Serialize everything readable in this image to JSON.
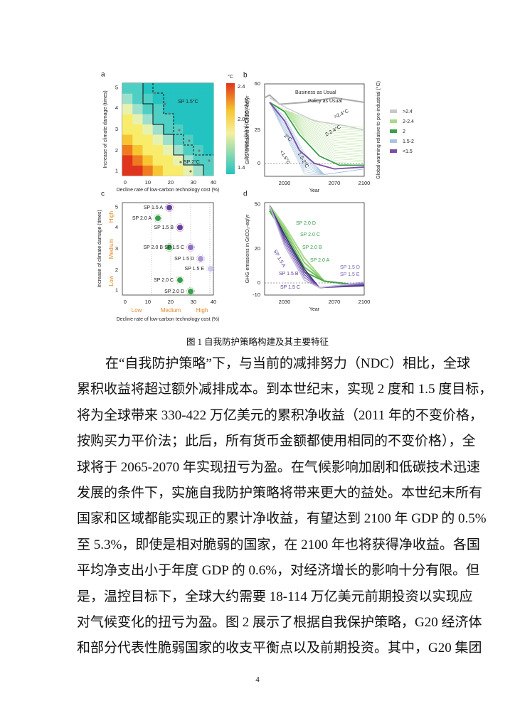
{
  "figure": {
    "panels": [
      {
        "letter": "a",
        "x_label": "Decline rate of low-carbon technology cost (%)",
        "y_label": "Increase of climate damage (times)",
        "x_ticks": [
          "0",
          "10",
          "20",
          "30",
          "40"
        ],
        "y_ticks": [
          "1",
          "2",
          "3",
          "4",
          "5"
        ],
        "annotations": [
          "SP 1.5°C",
          "SP 2°C"
        ],
        "colorbar_unit": "°C",
        "colorbar_ticks": [
          "2.4",
          "2.0",
          "1.4"
        ],
        "colorbar_label": "Increase global temperature"
      },
      {
        "letter": "b",
        "x_label": "Year",
        "y_label": "GHG emissions in GtCO₂-eq/yr",
        "x_ticks": [
          "2030",
          "2070",
          "2100"
        ],
        "y_ticks": [
          "60",
          "25",
          "0"
        ],
        "annotations": [
          "Business as Usual",
          "Policy as Usual",
          ">2.4°C",
          "2-2.4°C",
          "2°C",
          "1.5-2°C",
          "<1.5°C"
        ],
        "legend_title": "Global warming relative to pre-industrial (°C)",
        "legend": [
          {
            "name": ">2.4",
            "color": "#c8c8c8"
          },
          {
            "name": "2-2.4",
            "color": "#a9d98b"
          },
          {
            "name": "2",
            "color": "#3a9e4a"
          },
          {
            "name": "1.5-2",
            "color": "#a9c4e0"
          },
          {
            "name": "<1.5",
            "color": "#7b4fa8"
          }
        ]
      },
      {
        "letter": "c",
        "x_label": "Decline rate of low-carbon technology cost (%)",
        "y_label": "Increase of climate damage (times)",
        "x_ticks": [
          "0",
          "10",
          "20",
          "30",
          "40"
        ],
        "y_ticks": [
          "1",
          "2",
          "3",
          "4",
          "5"
        ],
        "x_levels": [
          "Low",
          "Medium",
          "High"
        ],
        "y_levels": [
          "Low",
          "Medium",
          "High"
        ],
        "annotations": [
          "SP 1.5 A",
          "SP 2.0 A",
          "SP 1.5 B",
          "SP 1.5 C",
          "SP 2.0 B",
          "SP 1.5 D",
          "SP 1.5 E",
          "SP 2.0 C",
          "SP 2.0 D"
        ]
      },
      {
        "letter": "d",
        "x_label": "Year",
        "y_label": "GHG emissions in GtCO₂-eq/yr",
        "x_ticks": [
          "2030",
          "2070",
          "2100"
        ],
        "y_ticks": [
          "50",
          "20",
          "0",
          "-10"
        ],
        "annotations": [
          "SP 2.0 D",
          "SP 2.0 C",
          "SP 2.0 B",
          "SP 2.0 A",
          "SP 1.5 A",
          "SP 1.5 B",
          "SP 1.5 C",
          "SP 1.5 D",
          "SP 1.5 E"
        ]
      }
    ],
    "caption": "图 1  自我防护策略构建及其主要特征"
  },
  "body": {
    "lines": [
      "在“自我防护策略”下，与当前的减排努力（NDC）相比，全球",
      "累积收益将超过额外减排成本。到本世纪末，实现 2 度和 1.5 度目标，",
      "将为全球带来 330-422 万亿美元的累积净收益（2011 年的不变价格，",
      "按购买力平价法；此后，所有货币金额都使用相同的不变价格），全",
      "球将于 2065-2070 年实现扭亏为盈。在气候影响加剧和低碳技术迅速",
      "发展的条件下，实施自我防护策略将带来更大的益处。本世纪末所有",
      "国家和区域都能实现正的累计净收益，有望达到 2100 年 GDP 的 0.5%",
      "至 5.3%，即使是相对脆弱的国家，在 2100 年也将获得净收益。各国",
      "平均净支出小于年度 GDP 的 0.6%，对经济增长的影响十分有限。但",
      "是，温控目标下，全球大约需要 18-114 万亿美元前期投资以实现应",
      "对气候变化的扭亏为盈。图 2 展示了根据自我保护策略，G20 经济体",
      "和部分代表性脆弱国家的收支平衡点以及前期投资。其中，G20 集团"
    ]
  },
  "page_number": "4"
}
